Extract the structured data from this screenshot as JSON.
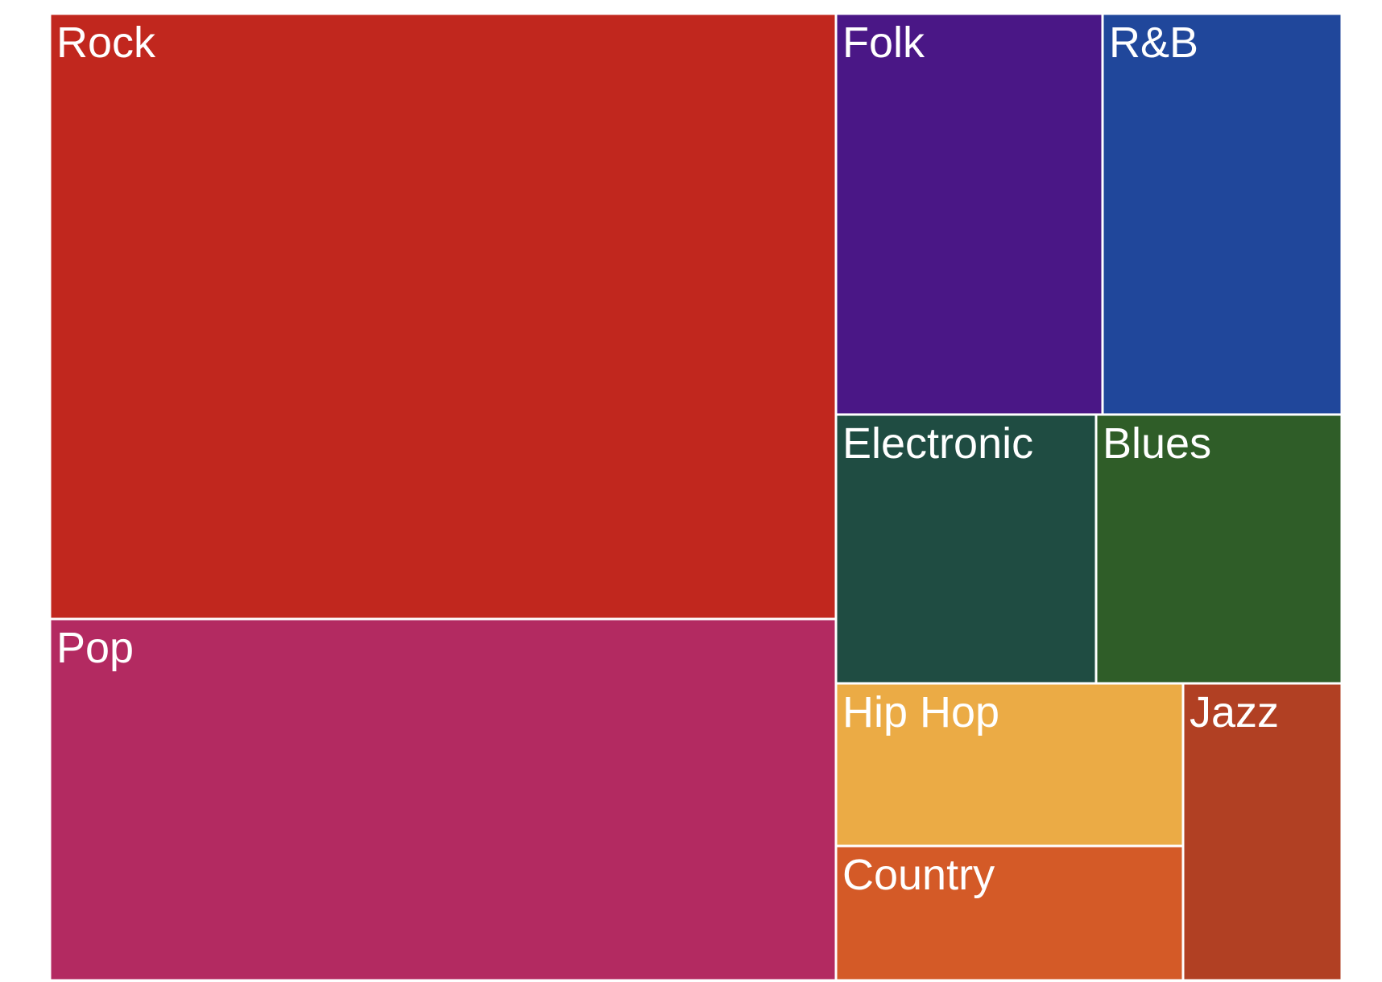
{
  "chart_data": {
    "type": "treemap",
    "title": "",
    "tiles": [
      {
        "label": "Rock",
        "value": 35,
        "color": "#c1271e"
      },
      {
        "label": "Pop",
        "value": 21,
        "color": "#b32a61"
      },
      {
        "label": "Folk",
        "value": 8,
        "color": "#4a1786"
      },
      {
        "label": "R&B",
        "value": 7,
        "color": "#20479b"
      },
      {
        "label": "Electronic",
        "value": 5.5,
        "color": "#1f4c42"
      },
      {
        "label": "Blues",
        "value": 5.2,
        "color": "#2f5d28"
      },
      {
        "label": "Hip Hop",
        "value": 4.4,
        "color": "#ebab45"
      },
      {
        "label": "Jazz",
        "value": 3.5,
        "color": "#b14023"
      },
      {
        "label": "Country",
        "value": 3.6,
        "color": "#d45a27"
      }
    ]
  }
}
